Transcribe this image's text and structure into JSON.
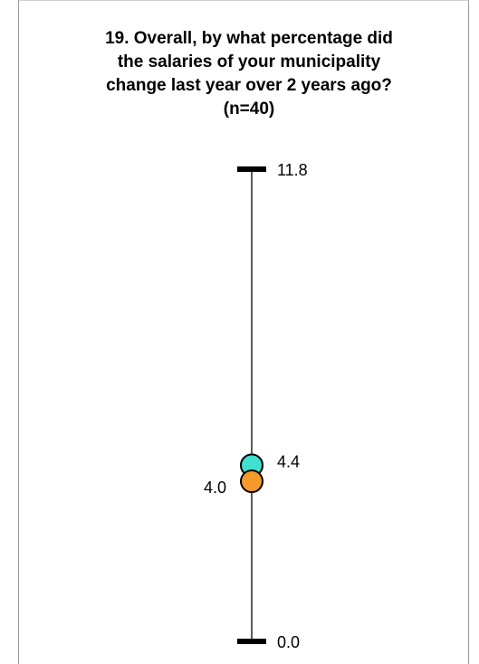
{
  "title_lines": [
    "19. Overall, by what percentage did",
    "the salaries of your municipality",
    "change last year over 2 years ago?",
    "(n=40)"
  ],
  "chart_data": {
    "type": "scatter",
    "title": "19. Overall, by what percentage did the salaries of your municipality change last year over 2 years ago? (n=40)",
    "ylim": [
      0.0,
      11.8
    ],
    "axis_labels": {
      "max": "11.8",
      "min": "0.0"
    },
    "series": [
      {
        "value": 4.4,
        "label": "4.4",
        "color": "#40e0d0",
        "label_side": "right"
      },
      {
        "value": 4.0,
        "label": "4.0",
        "color": "#f79a2e",
        "label_side": "left"
      }
    ],
    "grid": false,
    "legend": "none"
  }
}
